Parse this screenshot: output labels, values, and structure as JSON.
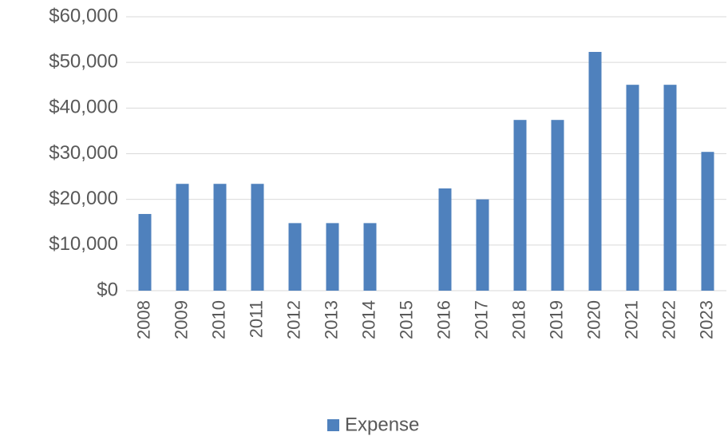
{
  "chart_data": {
    "type": "bar",
    "categories": [
      "2008",
      "2009",
      "2010",
      "2011",
      "2012",
      "2013",
      "2014",
      "2015",
      "2016",
      "2017",
      "2018",
      "2019",
      "2020",
      "2021",
      "2022",
      "2023"
    ],
    "series": [
      {
        "name": "Expense",
        "color": "#4f81bd",
        "values": [
          16800,
          23400,
          23400,
          23400,
          14800,
          14800,
          14800,
          0,
          22400,
          20000,
          37400,
          37400,
          52300,
          45100,
          45100,
          30400
        ]
      }
    ],
    "ylim": [
      0,
      60000
    ],
    "yticks": [
      {
        "value": 0,
        "label": "$0"
      },
      {
        "value": 10000,
        "label": "$10,000"
      },
      {
        "value": 20000,
        "label": "$20,000"
      },
      {
        "value": 30000,
        "label": "$30,000"
      },
      {
        "value": 40000,
        "label": "$40,000"
      },
      {
        "value": 50000,
        "label": "$50,000"
      },
      {
        "value": 60000,
        "label": "$60,000"
      }
    ],
    "grid": true,
    "legend": "bottom"
  }
}
